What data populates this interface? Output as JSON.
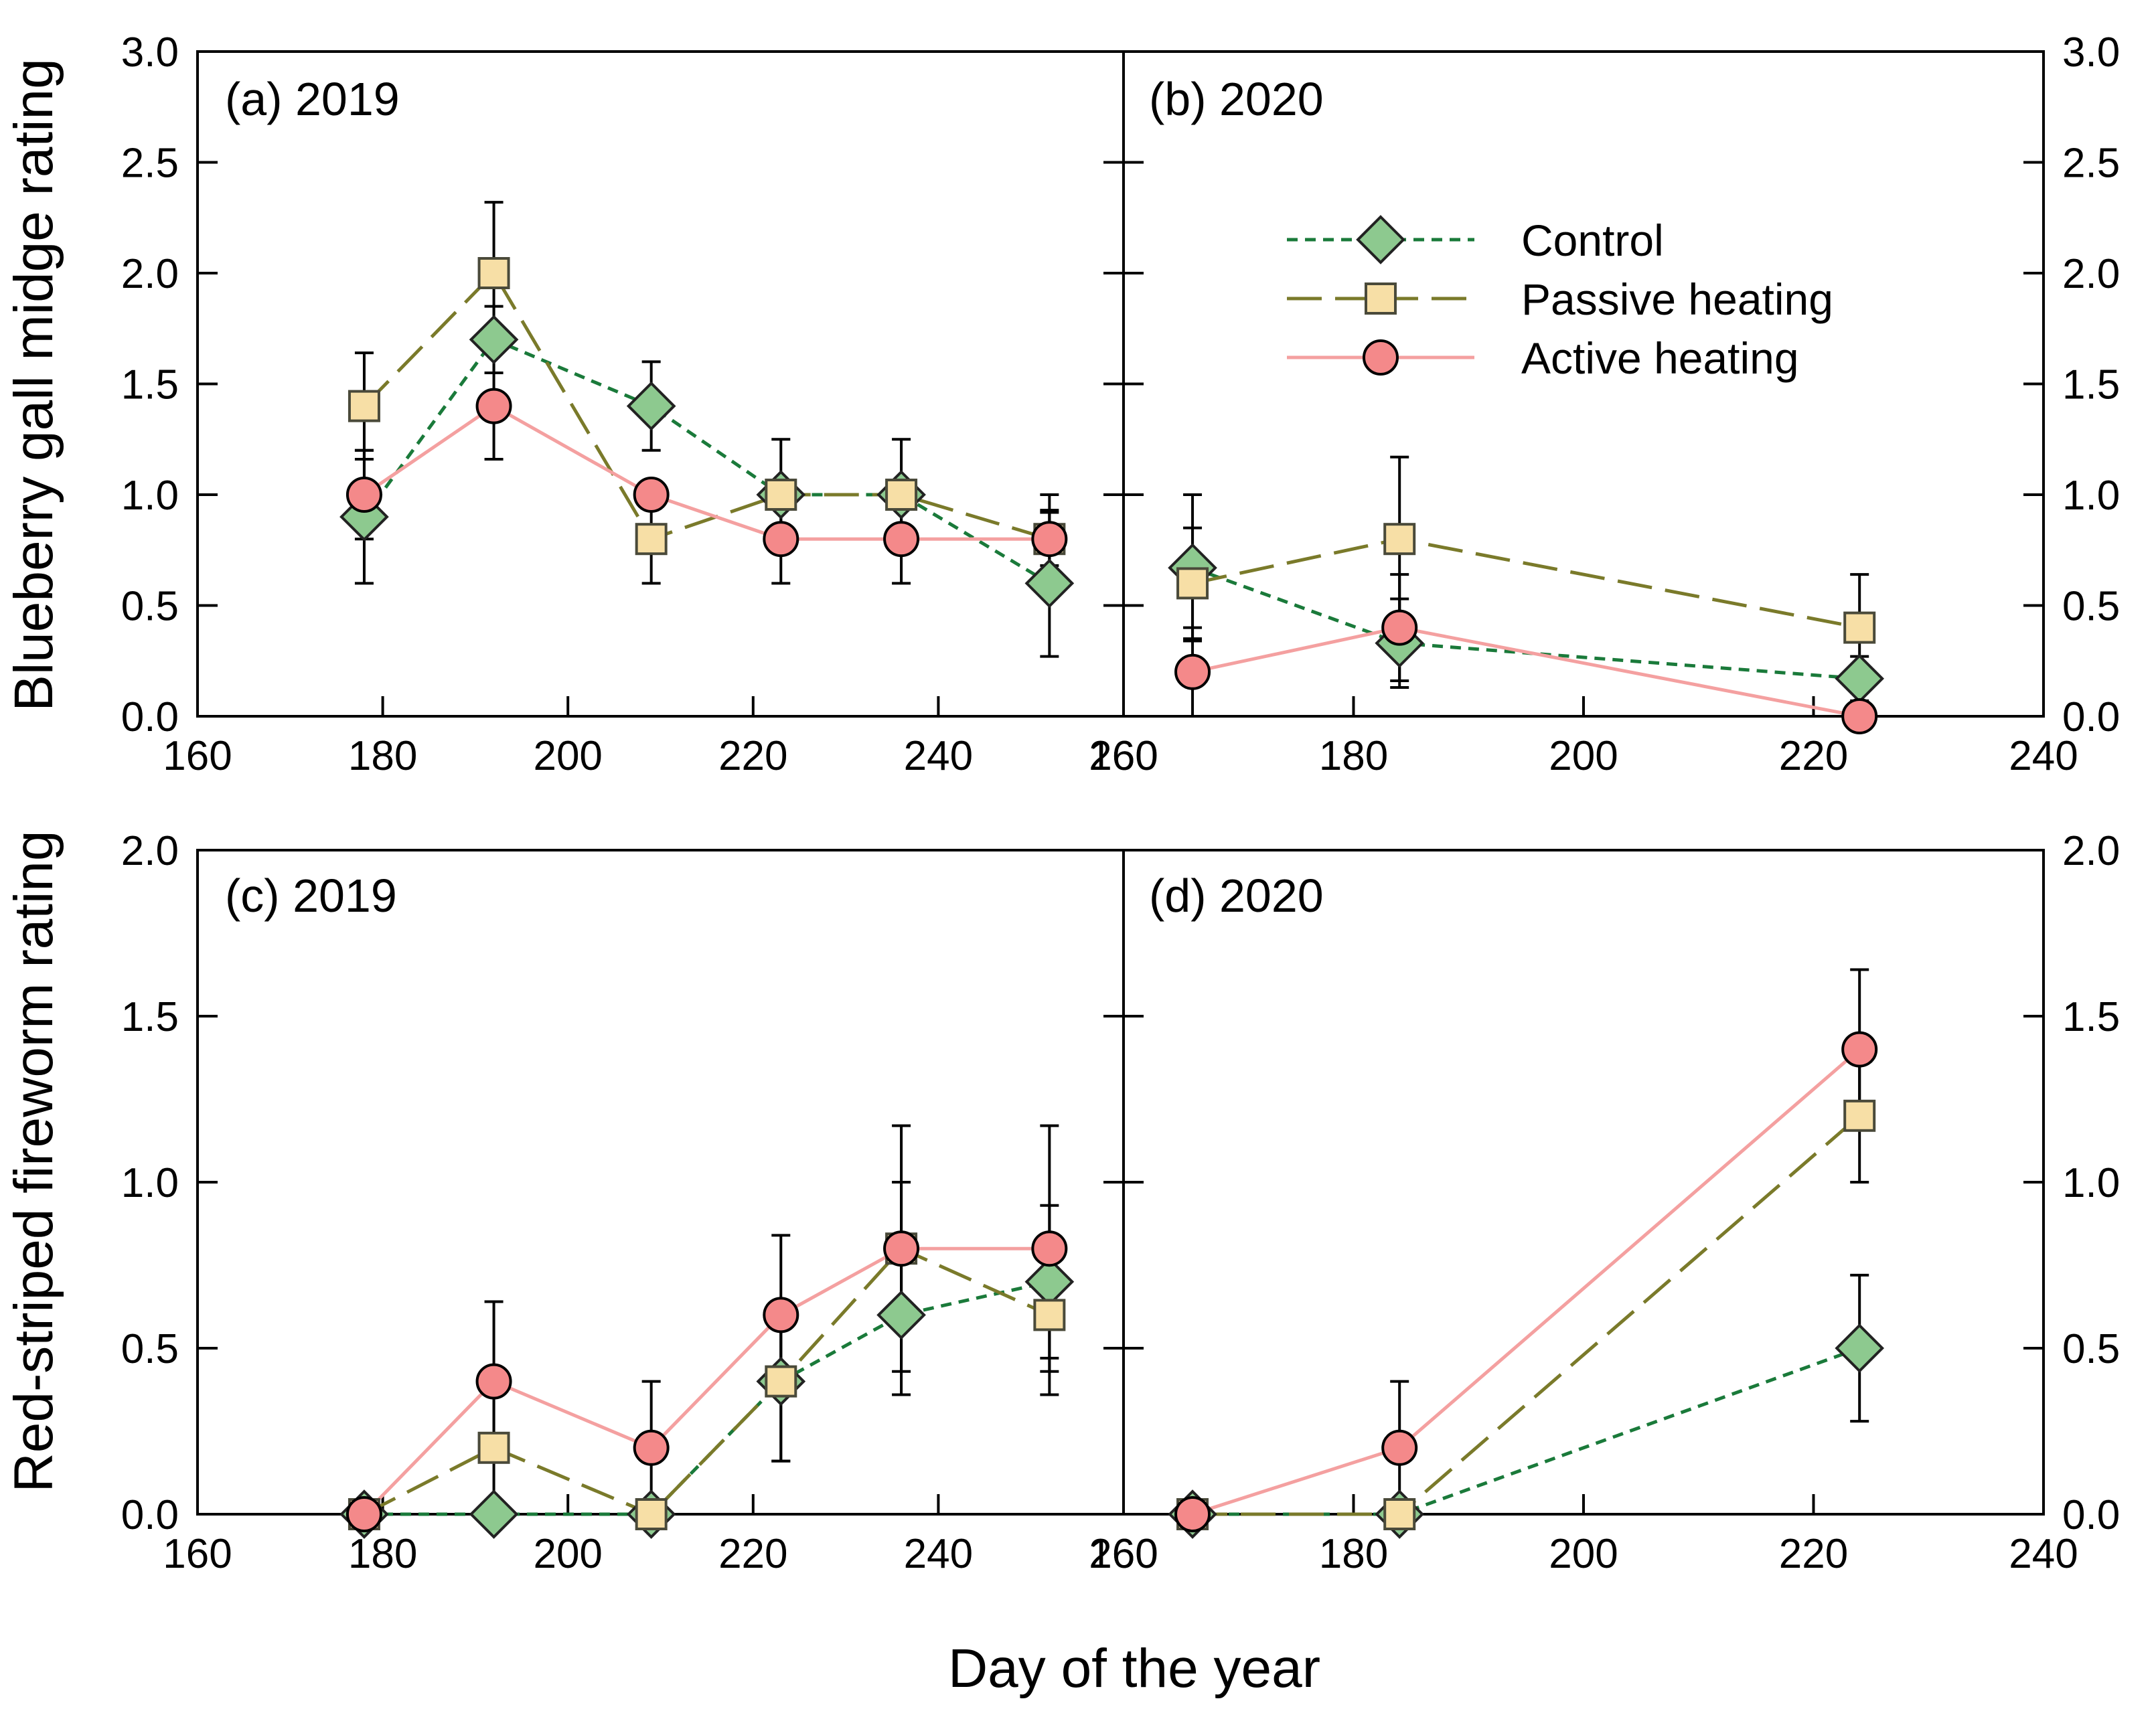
{
  "figure": {
    "xlabel": "Day of the year",
    "ylabel_top": "Blueberry gall midge rating",
    "ylabel_bottom": "Red-striped fireworm rating"
  },
  "legend": [
    {
      "name": "Control",
      "color": "#1a7a3a",
      "fill": "#8dc98f",
      "marker": "diamond",
      "dash": "short-dash"
    },
    {
      "name": "Passive heating",
      "color": "#7a7a2a",
      "fill": "#f7dfa6",
      "marker": "square",
      "dash": "long-dash"
    },
    {
      "name": "Active heating",
      "color": "#f4a0a0",
      "fill": "#f4898a",
      "marker": "circle",
      "dash": "solid"
    }
  ],
  "chart_data": [
    {
      "type": "line",
      "title": "(a) 2019",
      "x_tick_labels": [
        "160",
        "180",
        "200",
        "220",
        "240",
        "260"
      ],
      "x_ticks": [
        160,
        180,
        200,
        220,
        240,
        260
      ],
      "xlim": [
        160,
        260
      ],
      "y_tick_labels": [
        "0.0",
        "0.5",
        "1.0",
        "1.5",
        "2.0",
        "2.5",
        "3.0"
      ],
      "y_ticks": [
        0,
        0.5,
        1.0,
        1.5,
        2.0,
        2.5,
        3.0
      ],
      "ylim": [
        0,
        3
      ],
      "series": [
        {
          "name": "Control",
          "x": [
            178,
            192,
            209,
            223,
            236,
            252
          ],
          "y": [
            0.9,
            1.7,
            1.4,
            1.0,
            1.0,
            0.6
          ],
          "err": [
            0.3,
            0.15,
            0.2,
            0.05,
            0.05,
            0.33
          ]
        },
        {
          "name": "Passive heating",
          "x": [
            178,
            192,
            209,
            223,
            236,
            252
          ],
          "y": [
            1.4,
            2.0,
            0.8,
            1.0,
            1.0,
            0.8
          ],
          "err": [
            0.24,
            0.32,
            0.2,
            0.25,
            0.25,
            0.2
          ]
        },
        {
          "name": "Active heating",
          "x": [
            178,
            192,
            209,
            223,
            236,
            252
          ],
          "y": [
            1.0,
            1.4,
            1.0,
            0.8,
            0.8,
            0.8
          ],
          "err": [
            0.2,
            0.24,
            0.05,
            0.2,
            0.2,
            0.12
          ]
        }
      ]
    },
    {
      "type": "line",
      "title": "(b) 2020",
      "x_tick_labels": [
        "160",
        "180",
        "200",
        "220",
        "240"
      ],
      "x_ticks": [
        160,
        180,
        200,
        220,
        240
      ],
      "xlim": [
        160,
        240
      ],
      "y_tick_labels": [
        "0.0",
        "0.5",
        "1.0",
        "1.5",
        "2.0",
        "2.5",
        "3.0"
      ],
      "y_ticks": [
        0,
        0.5,
        1.0,
        1.5,
        2.0,
        2.5,
        3.0
      ],
      "ylim": [
        0,
        3
      ],
      "series": [
        {
          "name": "Control",
          "x": [
            166,
            184,
            224
          ],
          "y": [
            0.67,
            0.33,
            0.17
          ],
          "err": [
            0.33,
            0.2,
            0.1
          ]
        },
        {
          "name": "Passive heating",
          "x": [
            166,
            184,
            224
          ],
          "y": [
            0.6,
            0.8,
            0.4
          ],
          "err": [
            0.25,
            0.37,
            0.24
          ]
        },
        {
          "name": "Active heating",
          "x": [
            166,
            184,
            224
          ],
          "y": [
            0.2,
            0.4,
            0.0
          ],
          "err": [
            0.2,
            0.24,
            0.0
          ]
        }
      ]
    },
    {
      "type": "line",
      "title": "(c) 2019",
      "x_tick_labels": [
        "160",
        "180",
        "200",
        "220",
        "240",
        "260"
      ],
      "x_ticks": [
        160,
        180,
        200,
        220,
        240,
        260
      ],
      "xlim": [
        160,
        260
      ],
      "y_tick_labels": [
        "0.0",
        "0.5",
        "1.0",
        "1.5",
        "2.0"
      ],
      "y_ticks": [
        0,
        0.5,
        1.0,
        1.5,
        2.0
      ],
      "ylim": [
        0,
        2
      ],
      "series": [
        {
          "name": "Control",
          "x": [
            178,
            192,
            209,
            223,
            236,
            252
          ],
          "y": [
            0.0,
            0.0,
            0.0,
            0.4,
            0.6,
            0.7
          ],
          "err": [
            0,
            0,
            0,
            0.24,
            0.24,
            0.23
          ]
        },
        {
          "name": "Passive heating",
          "x": [
            178,
            192,
            209,
            223,
            236,
            252
          ],
          "y": [
            0.0,
            0.2,
            0.0,
            0.4,
            0.8,
            0.6
          ],
          "err": [
            0,
            0.2,
            0,
            0.24,
            0.2,
            0.24
          ]
        },
        {
          "name": "Active heating",
          "x": [
            178,
            192,
            209,
            223,
            236,
            252
          ],
          "y": [
            0.0,
            0.4,
            0.2,
            0.6,
            0.8,
            0.8
          ],
          "err": [
            0,
            0.24,
            0.2,
            0.24,
            0.37,
            0.37
          ]
        }
      ]
    },
    {
      "type": "line",
      "title": "(d) 2020",
      "x_tick_labels": [
        "160",
        "180",
        "200",
        "220",
        "240"
      ],
      "x_ticks": [
        160,
        180,
        200,
        220,
        240
      ],
      "xlim": [
        160,
        240
      ],
      "y_tick_labels": [
        "0.0",
        "0.5",
        "1.0",
        "1.5",
        "2.0"
      ],
      "y_ticks": [
        0,
        0.5,
        1.0,
        1.5,
        2.0
      ],
      "ylim": [
        0,
        2
      ],
      "series": [
        {
          "name": "Control",
          "x": [
            166,
            184,
            224
          ],
          "y": [
            0.0,
            0.0,
            0.5
          ],
          "err": [
            0,
            0,
            0.22
          ]
        },
        {
          "name": "Passive heating",
          "x": [
            166,
            184,
            224
          ],
          "y": [
            0.0,
            0.0,
            1.2
          ],
          "err": [
            0,
            0,
            0.2
          ]
        },
        {
          "name": "Active heating",
          "x": [
            166,
            184,
            224
          ],
          "y": [
            0.0,
            0.2,
            1.4
          ],
          "err": [
            0,
            0.2,
            0.24
          ]
        }
      ]
    }
  ]
}
